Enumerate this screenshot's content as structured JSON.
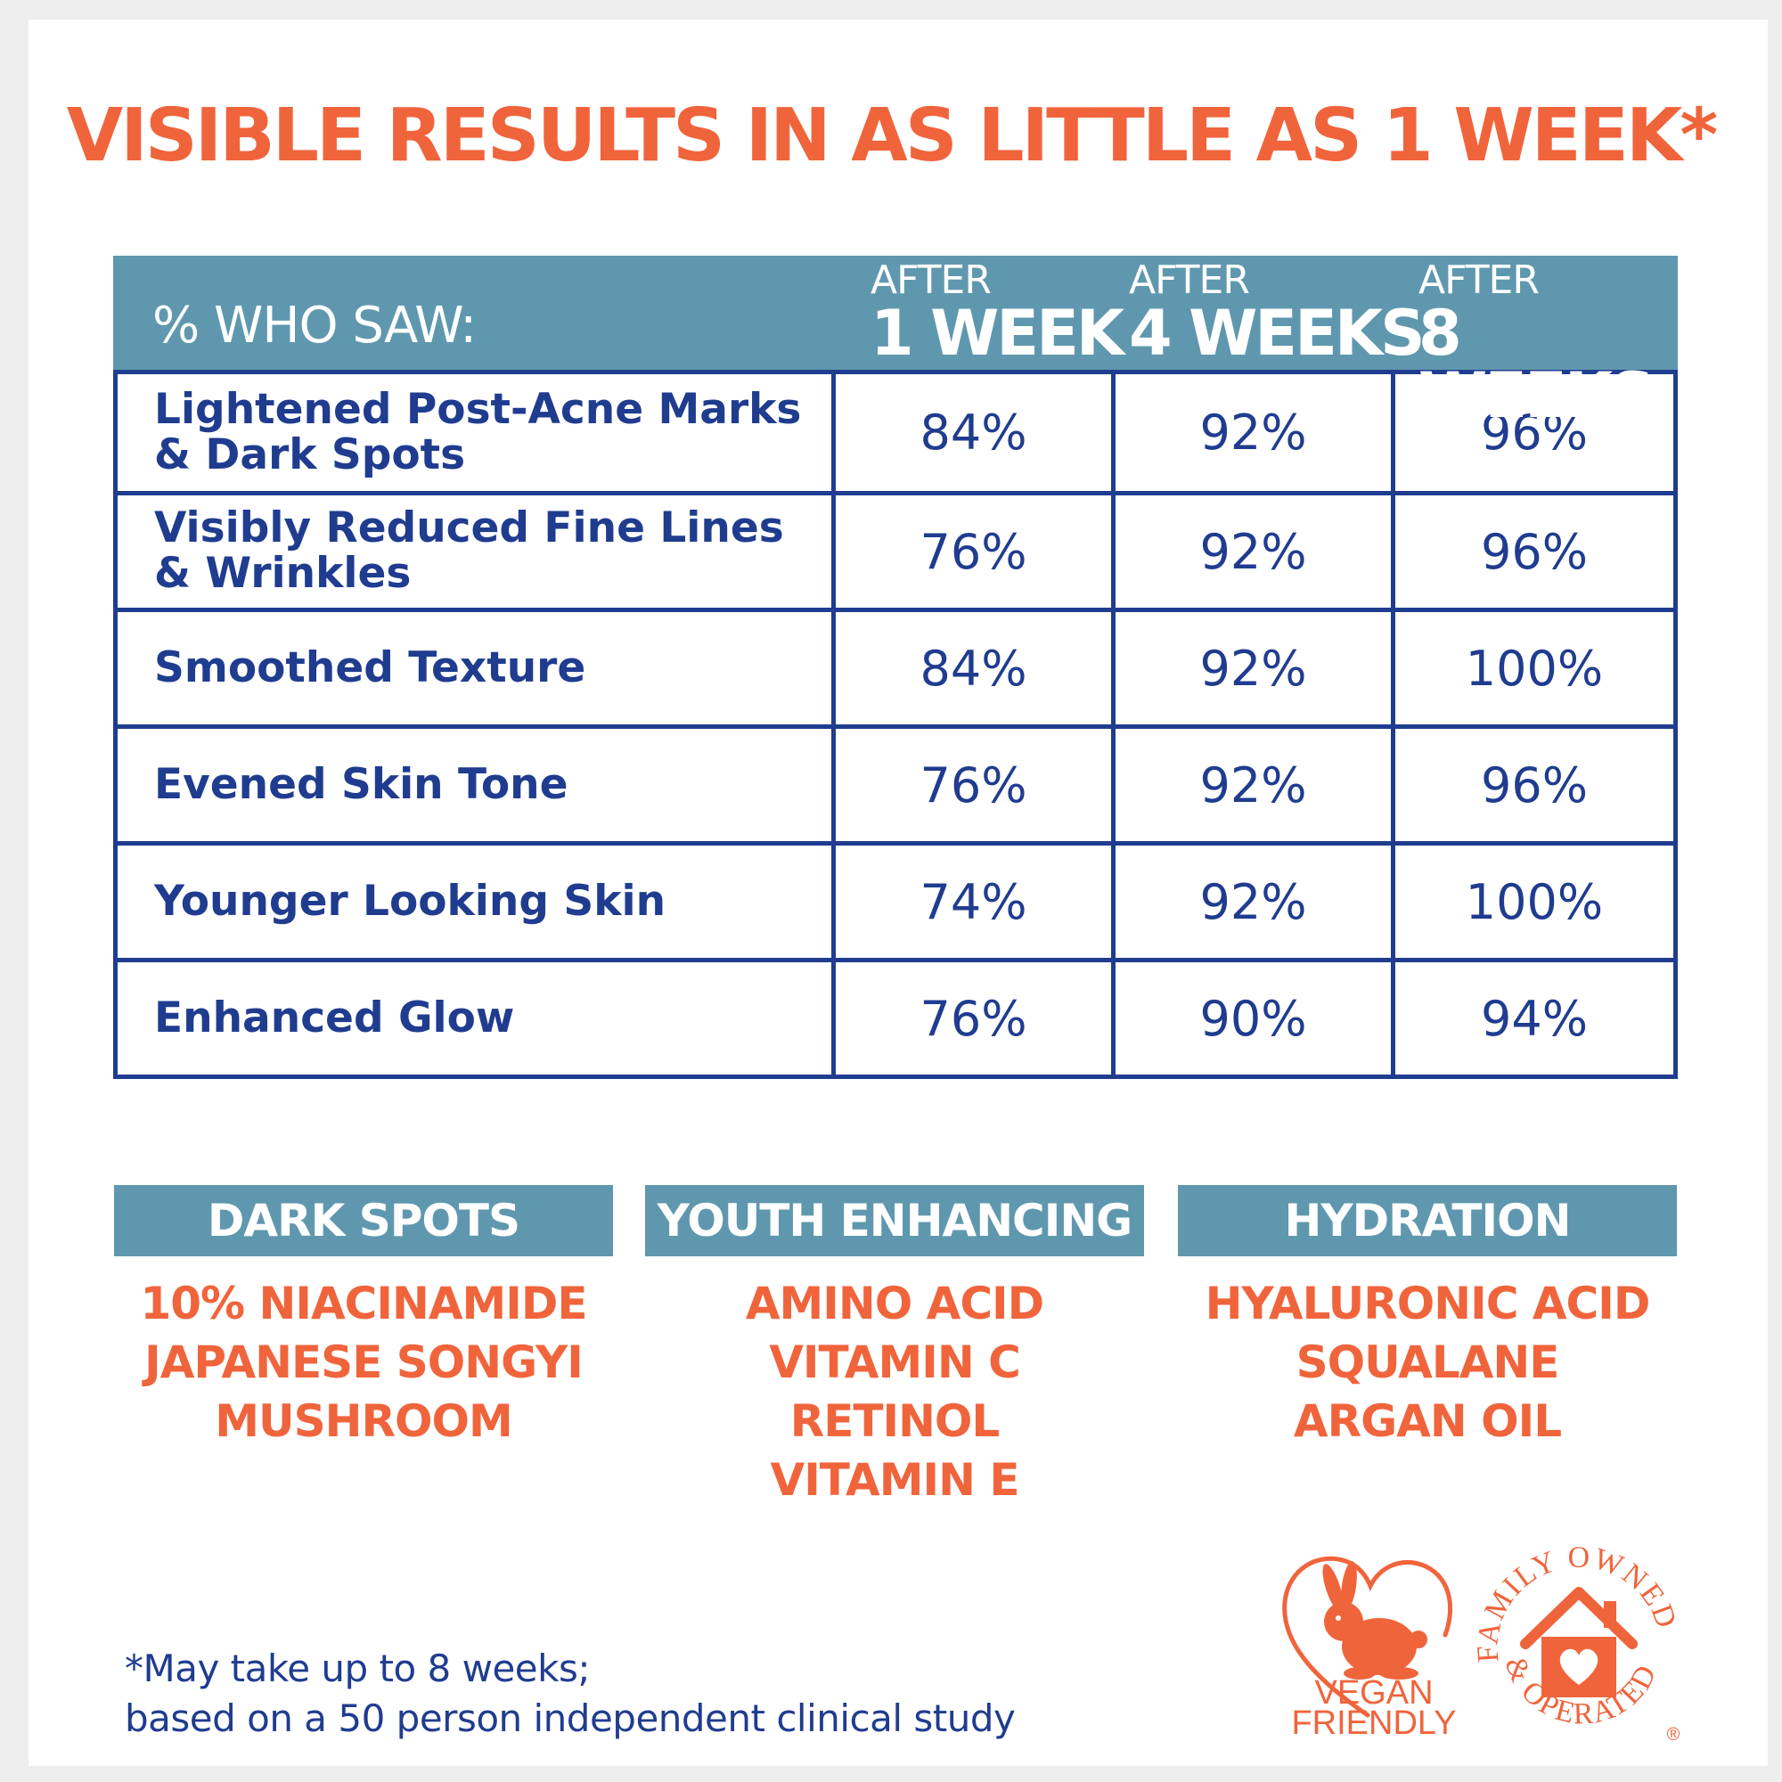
{
  "headline": "VISIBLE RESULTS IN AS LITTLE AS 1 WEEK*",
  "table": {
    "corner_label": "% WHO SAW:",
    "periods": [
      {
        "small": "AFTER",
        "big": "1 WEEK"
      },
      {
        "small": "AFTER",
        "big": "4 WEEKS"
      },
      {
        "small": "AFTER",
        "big": "8 WEEKS"
      }
    ],
    "rows": [
      {
        "label_line1": "Lightened Post-Acne Marks",
        "label_line2": "& Dark Spots",
        "values": [
          "84%",
          "92%",
          "96%"
        ]
      },
      {
        "label_line1": "Visibly Reduced Fine Lines",
        "label_line2": "& Wrinkles",
        "values": [
          "76%",
          "92%",
          "96%"
        ]
      },
      {
        "label_line1": "Smoothed Texture",
        "label_line2": "",
        "values": [
          "84%",
          "92%",
          "100%"
        ]
      },
      {
        "label_line1": "Evened Skin Tone",
        "label_line2": "",
        "values": [
          "76%",
          "92%",
          "96%"
        ]
      },
      {
        "label_line1": "Younger Looking Skin",
        "label_line2": "",
        "values": [
          "74%",
          "92%",
          "100%"
        ]
      },
      {
        "label_line1": "Enhanced Glow",
        "label_line2": "",
        "values": [
          "76%",
          "90%",
          "94%"
        ]
      }
    ]
  },
  "ingredients": [
    {
      "heading": "DARK SPOTS",
      "items": [
        "10% NIACINAMIDE",
        "JAPANESE SONGYI",
        "MUSHROOM"
      ]
    },
    {
      "heading": "YOUTH ENHANCING",
      "items": [
        "AMINO ACID",
        "VITAMIN C",
        "RETINOL",
        "VITAMIN E"
      ]
    },
    {
      "heading": "HYDRATION",
      "items": [
        "HYALURONIC ACID",
        "SQUALANE",
        "ARGAN OIL"
      ]
    }
  ],
  "footnote": {
    "line1": "*May take up to 8 weeks;",
    "line2": "based on a 50 person independent clinical study"
  },
  "badges": {
    "vegan_line1": "VEGAN",
    "vegan_line2": "FRIENDLY",
    "family_top": "FAMILY OWNED",
    "family_bottom": "& OPERATED",
    "registered_mark": "®",
    "icons": [
      "rabbit-heart-icon",
      "house-heart-icon"
    ]
  },
  "colors": {
    "orange": "#f0643c",
    "navy": "#1f3c8f",
    "steel_blue": "#5f98ae"
  }
}
